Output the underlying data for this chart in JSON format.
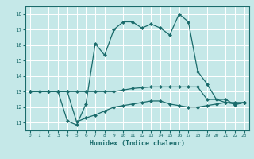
{
  "xlabel": "Humidex (Indice chaleur)",
  "ylabel": "",
  "background_color": "#c5e8e8",
  "grid_color": "#ffffff",
  "line_color": "#1a6b6b",
  "xlim": [
    -0.5,
    23.5
  ],
  "ylim": [
    10.5,
    18.5
  ],
  "xticks": [
    0,
    1,
    2,
    3,
    4,
    5,
    6,
    7,
    8,
    9,
    10,
    11,
    12,
    13,
    14,
    15,
    16,
    17,
    18,
    19,
    20,
    21,
    22,
    23
  ],
  "yticks": [
    11,
    12,
    13,
    14,
    15,
    16,
    17,
    18
  ],
  "line1_x": [
    0,
    1,
    2,
    3,
    4,
    5,
    6,
    7,
    8,
    9,
    10,
    11,
    12,
    13,
    14,
    15,
    16,
    17,
    18,
    19,
    20,
    21,
    22,
    23
  ],
  "line1_y": [
    13.0,
    13.0,
    13.0,
    13.0,
    11.1,
    10.85,
    12.2,
    16.1,
    15.35,
    17.0,
    17.5,
    17.5,
    17.1,
    17.35,
    17.1,
    16.65,
    18.0,
    17.5,
    14.3,
    13.5,
    12.5,
    12.5,
    12.15,
    12.3
  ],
  "line2_x": [
    0,
    1,
    2,
    3,
    4,
    5,
    6,
    7,
    8,
    9,
    10,
    11,
    12,
    13,
    14,
    15,
    16,
    17,
    18,
    19,
    20,
    21,
    22,
    23
  ],
  "line2_y": [
    13.0,
    13.0,
    13.0,
    13.0,
    13.0,
    13.0,
    13.0,
    13.0,
    13.0,
    13.0,
    13.1,
    13.2,
    13.25,
    13.3,
    13.3,
    13.3,
    13.3,
    13.3,
    13.3,
    12.5,
    12.5,
    12.3,
    12.2,
    12.3
  ],
  "line3_x": [
    0,
    1,
    2,
    3,
    4,
    5,
    6,
    7,
    8,
    9,
    10,
    11,
    12,
    13,
    14,
    15,
    16,
    17,
    18,
    19,
    20,
    21,
    22,
    23
  ],
  "line3_y": [
    13.0,
    13.0,
    13.0,
    13.0,
    13.0,
    11.05,
    11.3,
    11.5,
    11.75,
    12.0,
    12.1,
    12.2,
    12.3,
    12.4,
    12.4,
    12.2,
    12.1,
    12.0,
    12.0,
    12.1,
    12.2,
    12.3,
    12.3,
    12.3
  ]
}
